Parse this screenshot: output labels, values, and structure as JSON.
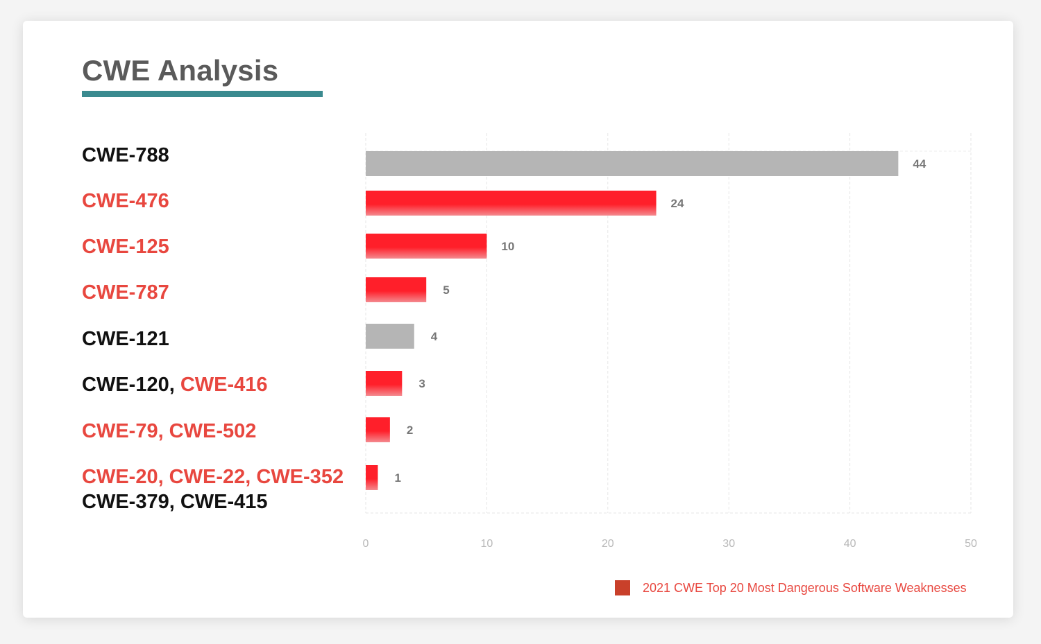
{
  "title": "CWE Analysis",
  "colors": {
    "title": "#5a5a5a",
    "accent_bar": "#3a8a8f",
    "highlight_text": "#e8473f",
    "normal_text": "#111111",
    "bar_highlight": "#ff1f2a",
    "bar_other": "#b5b5b5",
    "legend_swatch": "#c9402a"
  },
  "chart_data": {
    "type": "bar",
    "orientation": "horizontal",
    "xlim": [
      0,
      50
    ],
    "x_ticks": [
      "0",
      "10",
      "20",
      "30",
      "40",
      "50"
    ],
    "grid": true,
    "legend_position": "bottom-right",
    "categories": [
      {
        "lines": [
          [
            {
              "text": "CWE-788",
              "highlight": false
            }
          ]
        ],
        "value": 44,
        "value_label": "44",
        "highlight": false
      },
      {
        "lines": [
          [
            {
              "text": "CWE-476",
              "highlight": true
            }
          ]
        ],
        "value": 24,
        "value_label": "24",
        "highlight": true
      },
      {
        "lines": [
          [
            {
              "text": "CWE-125",
              "highlight": true
            }
          ]
        ],
        "value": 10,
        "value_label": "10",
        "highlight": true
      },
      {
        "lines": [
          [
            {
              "text": "CWE-787",
              "highlight": true
            }
          ]
        ],
        "value": 5,
        "value_label": "5",
        "highlight": true
      },
      {
        "lines": [
          [
            {
              "text": "CWE-121",
              "highlight": false
            }
          ]
        ],
        "value": 4,
        "value_label": "4",
        "highlight": false
      },
      {
        "lines": [
          [
            {
              "text": "CWE-120",
              "highlight": false
            },
            {
              "text": ", ",
              "highlight": false
            },
            {
              "text": "CWE-416",
              "highlight": true
            }
          ]
        ],
        "value": 3,
        "value_label": "3",
        "highlight": true
      },
      {
        "lines": [
          [
            {
              "text": "CWE-79, CWE-502",
              "highlight": true
            }
          ]
        ],
        "value": 2,
        "value_label": "2",
        "highlight": true
      },
      {
        "lines": [
          [
            {
              "text": "CWE-20, CWE-22, CWE-352",
              "highlight": true
            }
          ],
          [
            {
              "text": "CWE-379, CWE-415",
              "highlight": false
            }
          ]
        ],
        "value": 1,
        "value_label": "1",
        "highlight": true
      }
    ],
    "legend": [
      {
        "label": "2021 CWE Top 20 Most Dangerous Software Weaknesses",
        "color": "#c9402a"
      }
    ]
  }
}
